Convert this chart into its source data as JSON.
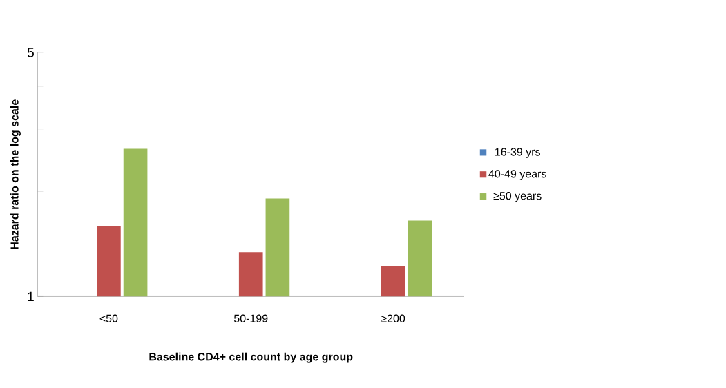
{
  "chart_data": {
    "type": "bar",
    "xlabel": "Baseline CD4+ cell count by age group",
    "ylabel": "Hazard ratio on the log scale",
    "categories": [
      "<50",
      "50-199",
      "≥200"
    ],
    "series": [
      {
        "name": "16-39 yrs",
        "color": "#4f81bd",
        "values": [
          1,
          1,
          1
        ]
      },
      {
        "name": "40-49 years",
        "color": "#c0504d",
        "values": [
          1.59,
          1.34,
          1.22
        ]
      },
      {
        "name": "≥50 years",
        "color": "#9bbb59",
        "values": [
          2.65,
          1.91,
          1.65
        ]
      }
    ],
    "log": "y",
    "ylim": [
      1,
      5
    ],
    "yticks": [
      1,
      {
        "value": 2,
        "label": null
      },
      {
        "value": 3,
        "label": null
      },
      {
        "value": 4,
        "label": null
      },
      5
    ],
    "legend": "right"
  }
}
